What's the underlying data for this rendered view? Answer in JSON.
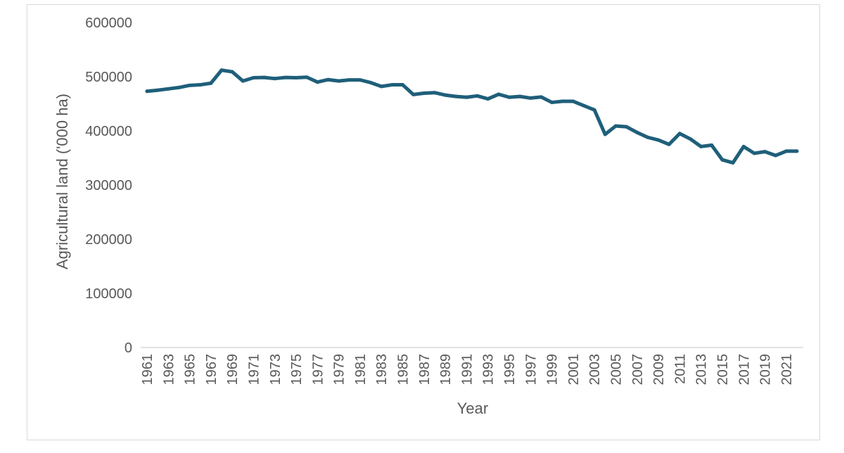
{
  "chart_data": {
    "type": "line",
    "title": "",
    "xlabel": "Year",
    "ylabel": "Agricultural land ('000 ha)",
    "ylim": [
      0,
      600000
    ],
    "y_ticks": [
      0,
      100000,
      200000,
      300000,
      400000,
      500000,
      600000
    ],
    "y_tick_labels": [
      "0",
      "100000",
      "200000",
      "300000",
      "400000",
      "500000",
      "600000"
    ],
    "x_tick_labels": [
      "1961",
      "1963",
      "1965",
      "1967",
      "1969",
      "1971",
      "1973",
      "1975",
      "1977",
      "1979",
      "1981",
      "1983",
      "1985",
      "1987",
      "1989",
      "1991",
      "1993",
      "1995",
      "1997",
      "1999",
      "2001",
      "2003",
      "2005",
      "2007",
      "2009",
      "2011",
      "2013",
      "2015",
      "2017",
      "2019",
      "2021"
    ],
    "grid": false,
    "legend": "none",
    "color": "#1f5f7a",
    "x": [
      1961,
      1962,
      1963,
      1964,
      1965,
      1966,
      1967,
      1968,
      1969,
      1970,
      1971,
      1972,
      1973,
      1974,
      1975,
      1976,
      1977,
      1978,
      1979,
      1980,
      1981,
      1982,
      1983,
      1984,
      1985,
      1986,
      1987,
      1988,
      1989,
      1990,
      1991,
      1992,
      1993,
      1994,
      1995,
      1996,
      1997,
      1998,
      1999,
      2000,
      2001,
      2002,
      2003,
      2004,
      2005,
      2006,
      2007,
      2008,
      2009,
      2010,
      2011,
      2012,
      2013,
      2014,
      2015,
      2016,
      2017,
      2018,
      2019,
      2020,
      2021,
      2022
    ],
    "series": [
      {
        "values": [
          473000,
          475000,
          477500,
          480000,
          484000,
          485000,
          488000,
          512000,
          509000,
          492000,
          498000,
          498500,
          496500,
          498500,
          498000,
          499000,
          490000,
          494500,
          492000,
          494000,
          494000,
          489000,
          482000,
          485000,
          485000,
          467000,
          469500,
          470500,
          466000,
          463500,
          462000,
          464500,
          459000,
          467500,
          462000,
          463500,
          460500,
          462500,
          452500,
          454500,
          454500,
          446500,
          438500,
          393500,
          409000,
          407500,
          397000,
          388000,
          383000,
          375000,
          395000,
          385000,
          371000,
          373500,
          346500,
          341000,
          371000,
          358500,
          361500,
          354500,
          362500,
          362500
        ]
      }
    ]
  }
}
